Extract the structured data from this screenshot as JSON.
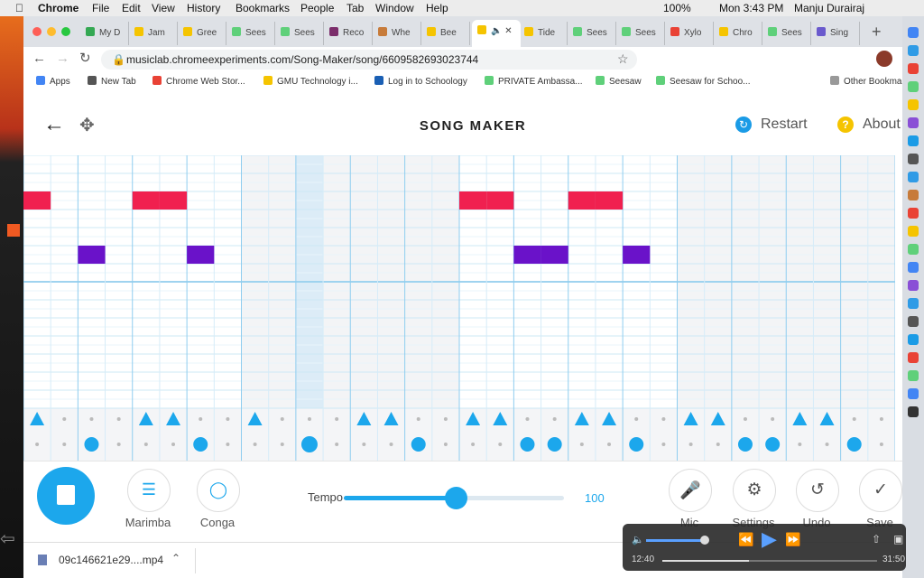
{
  "menu_bar": {
    "app": "Chrome",
    "items": [
      "File",
      "Edit",
      "View",
      "History",
      "Bookmarks",
      "People",
      "Tab",
      "Window",
      "Help"
    ],
    "battery": "100%",
    "clock": "Mon 3:43 PM",
    "user": "Manju Durairaj"
  },
  "tabs": [
    "My D",
    "Jam",
    "Gree",
    "Sees",
    "Sees",
    "Reco",
    "Whe",
    "Bee",
    "Tide",
    "Sees",
    "Sees",
    "Xylo",
    "Chro",
    "Sees",
    "Sing"
  ],
  "address_bar": {
    "url": "musiclab.chromeexperiments.com/Song-Maker/song/6609582693023744"
  },
  "bookmarks": [
    "Apps",
    "New Tab",
    "Chrome Web Stor...",
    "GMU Technology i...",
    "Log in to Schoology",
    "PRIVATE Ambassa...",
    "Seesaw",
    "Seesaw for Schoo..."
  ],
  "other_bookmarks": "Other Bookmar",
  "app": {
    "title": "SONG MAKER",
    "restart": "Restart",
    "about": "About"
  },
  "controls": {
    "instruments": [
      "Marimba",
      "Conga"
    ],
    "tempo_label": "Tempo",
    "tempo": 100,
    "buttons": [
      "Mic",
      "Settings",
      "Undo",
      "Save"
    ]
  },
  "download": "09c146621e29....mp4",
  "video_player": {
    "current_time": "12:40",
    "duration": "31:50"
  }
}
